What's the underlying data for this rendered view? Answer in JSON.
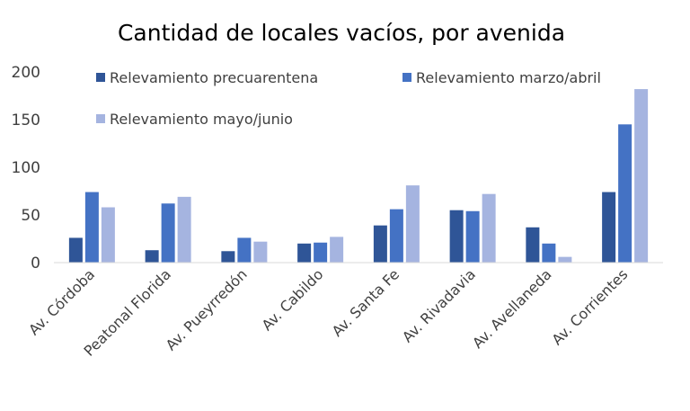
{
  "chart_data": {
    "type": "bar",
    "title": "Cantidad de locales vacíos, por avenida",
    "xlabel": "",
    "ylabel": "",
    "ylim": [
      0,
      200
    ],
    "yticks": [
      0,
      50,
      100,
      150,
      200
    ],
    "grid": false,
    "legend_position": "top",
    "categories": [
      "Av. Córdoba",
      "Peatonal Florida",
      "Av. Pueyrredón",
      "Av. Cabildo",
      "Av. Santa Fe",
      "Av. Rivadavia",
      "Av. Avellaneda",
      "Av. Corrientes"
    ],
    "series": [
      {
        "name": "Relevamiento precuarentena",
        "color": "#2F5597",
        "values": [
          26,
          13,
          12,
          20,
          39,
          55,
          37,
          74
        ]
      },
      {
        "name": "Relevamiento marzo/abril",
        "color": "#4472C4",
        "values": [
          74,
          62,
          26,
          21,
          56,
          54,
          20,
          145
        ]
      },
      {
        "name": "Relevamiento mayo/junio",
        "color": "#A5B4E0",
        "values": [
          58,
          69,
          22,
          27,
          81,
          72,
          6,
          182
        ]
      }
    ]
  }
}
